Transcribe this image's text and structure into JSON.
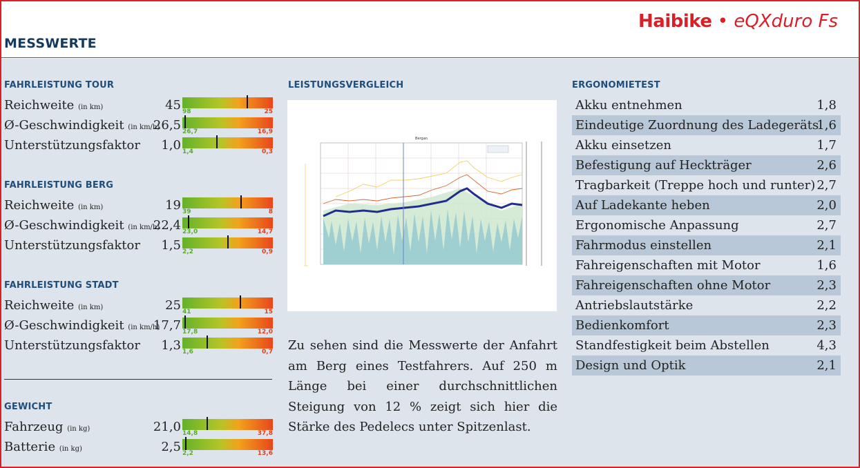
{
  "header": {
    "brand_name": "Haibike",
    "brand_sep": "•",
    "brand_model": "eQXduro Fs",
    "title": "MESSWERTE"
  },
  "sections": [
    {
      "title": "FAHRLEISTUNG TOUR",
      "rows": [
        {
          "label": "Reichweite",
          "unit": "(in km)",
          "value": "45",
          "lo": "98",
          "hi": "25",
          "marker": 0.72
        },
        {
          "label": "Ø-Geschwindigkeit",
          "unit": "(in km/h)",
          "value": "26,5",
          "lo": "26,7",
          "hi": "16,9",
          "marker": 0.02
        },
        {
          "label": "Unterstützungsfaktor",
          "unit": "",
          "value": "1,0",
          "lo": "1,4",
          "hi": "0,3",
          "marker": 0.38
        }
      ]
    },
    {
      "title": "FAHRLEISTUNG BERG",
      "rows": [
        {
          "label": "Reichweite",
          "unit": "(in km)",
          "value": "19",
          "lo": "39",
          "hi": "8",
          "marker": 0.65
        },
        {
          "label": "Ø-Geschwindigkeit",
          "unit": "(in km/h)",
          "value": "22,4",
          "lo": "23,0",
          "hi": "14,7",
          "marker": 0.06
        },
        {
          "label": "Unterstützungsfaktor",
          "unit": "",
          "value": "1,5",
          "lo": "2,2",
          "hi": "0,9",
          "marker": 0.5
        }
      ]
    },
    {
      "title": "FAHRLEISTUNG STADT",
      "rows": [
        {
          "label": "Reichweite",
          "unit": "(in km)",
          "value": "25",
          "lo": "41",
          "hi": "15",
          "marker": 0.64
        },
        {
          "label": "Ø-Geschwindigkeit",
          "unit": "(in km/h)",
          "value": "17,7",
          "lo": "17,8",
          "hi": "12,0",
          "marker": 0.02
        },
        {
          "label": "Unterstützungsfaktor",
          "unit": "",
          "value": "1,3",
          "lo": "1,6",
          "hi": "0,7",
          "marker": 0.27
        }
      ]
    },
    {
      "title": "GEWICHT",
      "rows": [
        {
          "label": "Fahrzeug",
          "unit": "(in kg)",
          "value": "21,0",
          "lo": "14,8",
          "hi": "37,8",
          "marker": 0.27
        },
        {
          "label": "Batterie",
          "unit": "(in kg)",
          "value": "2,5",
          "lo": "2,2",
          "hi": "13,6",
          "marker": 0.03
        }
      ]
    }
  ],
  "comparison": {
    "title": "LEISTUNGSVERGLEICH",
    "caption": "Zu sehen sind die Messwerte der Anfahrt am Berg eines Testfahrers. Auf 250 m Länge bei einer durchschnittlichen Steigung von 12 % zeigt sich hier die Stärke des Pedelecs unter Spitzenlast.",
    "chart_title": "Bergan"
  },
  "ergonomics": {
    "title": "ERGONOMIETEST",
    "rows": [
      {
        "label": "Akku entnehmen",
        "value": "1,8"
      },
      {
        "label": "Eindeutige Zuordnung des Ladegeräts",
        "value": "1,6"
      },
      {
        "label": "Akku einsetzen",
        "value": "1,7"
      },
      {
        "label": "Befestigung auf Heckträger",
        "value": "2,6"
      },
      {
        "label": "Tragbarkeit (Treppe hoch und runter)",
        "value": "2,7"
      },
      {
        "label": "Auf Ladekante heben",
        "value": "2,0"
      },
      {
        "label": "Ergonomische Anpassung",
        "value": "2,7"
      },
      {
        "label": "Fahrmodus einstellen",
        "value": "2,1"
      },
      {
        "label": "Fahreigenschaften mit Motor",
        "value": "1,6"
      },
      {
        "label": "Fahreigenschaften ohne Motor",
        "value": "2,3"
      },
      {
        "label": "Antriebslautstärke",
        "value": "2,2"
      },
      {
        "label": "Bedienkomfort",
        "value": "2,3"
      },
      {
        "label": "Standfestigkeit beim Abstellen",
        "value": "4,3"
      },
      {
        "label": "Design und Optik",
        "value": "2,1"
      }
    ]
  },
  "colors": {
    "brand": "#d92027",
    "title": "#153a5e",
    "section": "#1f4e7a",
    "background": "#dde4ec",
    "row_shade": "#b8c8d8",
    "good": "#62b22a",
    "bad": "#e8461c"
  }
}
